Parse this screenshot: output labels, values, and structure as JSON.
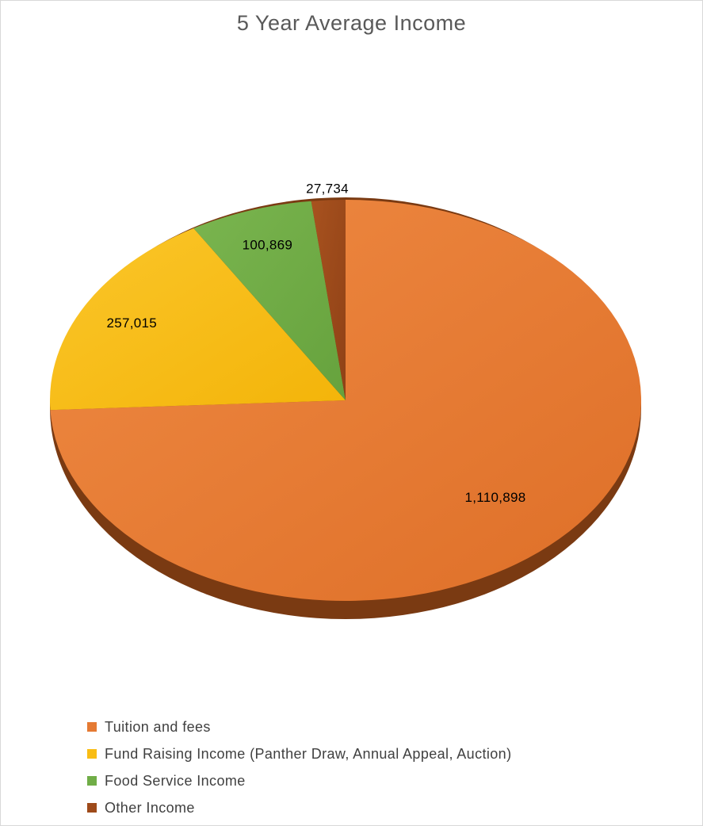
{
  "chart_data": {
    "type": "pie",
    "title": "5 Year Average Income",
    "categories": [
      "Tuition and fees",
      "Fund Raising Income (Panther Draw, Annual Appeal, Auction)",
      "Food Service Income",
      "Other Income"
    ],
    "values": [
      1110898,
      257015,
      100869,
      27734
    ],
    "data_labels": [
      "1,110,898",
      "257,015",
      "100,869",
      "27,734"
    ],
    "colors": [
      "#e57a33",
      "#f9bd14",
      "#70ad47",
      "#9e4a1a"
    ],
    "legend_position": "bottom-left",
    "start_angle": "12 o'clock, clockwise"
  }
}
